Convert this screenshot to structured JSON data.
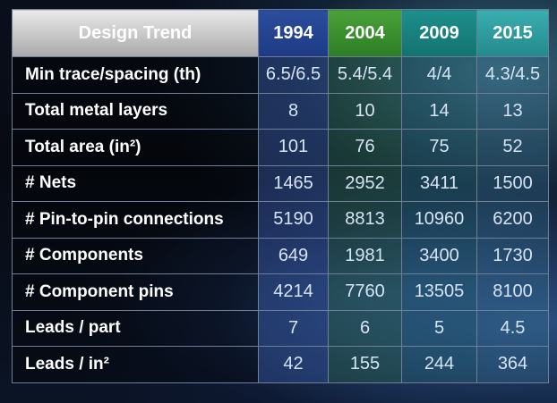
{
  "table": {
    "header": {
      "label": "Design Trend",
      "years": [
        "1994",
        "2004",
        "2009",
        "2015"
      ]
    },
    "rows": [
      {
        "label": "Min trace/spacing (th)",
        "values": [
          "6.5/6.5",
          "5.4/5.4",
          "4/4",
          "4.3/4.5"
        ]
      },
      {
        "label": "Total metal layers",
        "values": [
          "8",
          "10",
          "14",
          "13"
        ]
      },
      {
        "label": "Total area (in²)",
        "values": [
          "101",
          "76",
          "75",
          "52"
        ]
      },
      {
        "label": "# Nets",
        "values": [
          "1465",
          "2952",
          "3411",
          "1500"
        ]
      },
      {
        "label": "# Pin-to-pin connections",
        "values": [
          "5190",
          "8813",
          "10960",
          "6200"
        ]
      },
      {
        "label": "# Components",
        "values": [
          "649",
          "1981",
          "3400",
          "1730"
        ]
      },
      {
        "label": "# Component pins",
        "values": [
          "4214",
          "7760",
          "13505",
          "8100"
        ]
      },
      {
        "label": "Leads / part",
        "values": [
          "7",
          "6",
          "5",
          "4.5"
        ]
      },
      {
        "label": "Leads / in²",
        "values": [
          "42",
          "155",
          "244",
          "364"
        ]
      }
    ]
  },
  "colors": {
    "header_label_bg": "#c8c8c8",
    "y1994": "#1e3b84",
    "y2004": "#2c7d25",
    "y2009": "#127370",
    "y2015": "#23898c",
    "background": "#05070d"
  }
}
